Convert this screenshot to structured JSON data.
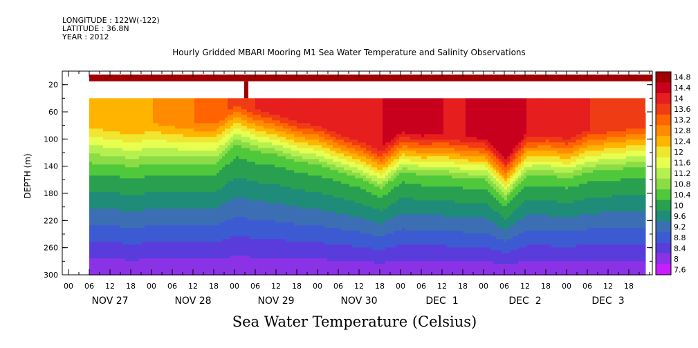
{
  "header": {
    "longitude": "LONGITUDE : 122W(-122)",
    "latitude": "LATITUDE : 36.8N",
    "year": "YEAR : 2012"
  },
  "chart_data": {
    "type": "heatmap",
    "title": "Hourly Gridded MBARI Mooring M1 Sea Water Temperature and Salinity Observations",
    "xlabel": "Sea Water Temperature (Celsius)",
    "ylabel": "DEPTH (m)",
    "ylim": [
      300,
      0
    ],
    "y_ticks": [
      "20",
      "60",
      "100",
      "140",
      "180",
      "220",
      "260",
      "300"
    ],
    "x_hour_ticks": [
      "00",
      "06",
      "12",
      "18",
      "00",
      "06",
      "12",
      "18",
      "00",
      "06",
      "12",
      "18",
      "00",
      "06",
      "12",
      "18",
      "00",
      "06",
      "12",
      "18",
      "00",
      "06",
      "12",
      "18",
      "00",
      "06",
      "12",
      "18"
    ],
    "x_day_labels": [
      "NOV 27",
      "NOV 28",
      "NOV 29",
      "NOV 30",
      "DEC  1",
      "DEC  2",
      "DEC  3"
    ],
    "colorbar_labels": [
      "14.8",
      "14.4",
      "14",
      "13.6",
      "13.2",
      "12.8",
      "12.4",
      "12",
      "11.6",
      "11.2",
      "10.8",
      "10.4",
      "10",
      "9.6",
      "9.2",
      "8.8",
      "8.4",
      "8",
      "7.6"
    ],
    "colorbar_colors": [
      "#a00000",
      "#c8001e",
      "#e61e1e",
      "#f03c14",
      "#ff6400",
      "#ff8c00",
      "#ffb400",
      "#f0e632",
      "#e6ff50",
      "#b4f050",
      "#8cdc46",
      "#50c83c",
      "#28a050",
      "#1e8c78",
      "#3c6eb4",
      "#3c5ad2",
      "#5a3cdc",
      "#8c32e6",
      "#c81eff"
    ],
    "depths": [
      40,
      60,
      80,
      100,
      120,
      140,
      160,
      180,
      200,
      220,
      240,
      260,
      280,
      300
    ],
    "days_since_nov27": [
      0.0,
      0.25,
      0.5,
      0.75,
      1.0,
      1.25,
      1.5,
      1.75,
      2.0,
      2.25,
      2.5,
      2.75,
      3.0,
      3.25,
      3.5,
      3.75,
      4.0,
      4.25,
      4.5,
      4.75,
      5.0,
      5.25,
      5.5,
      5.75,
      6.0,
      6.25,
      6.75
    ],
    "thermocline_depth_m": [
      100,
      100,
      100,
      105,
      100,
      100,
      100,
      100,
      70,
      80,
      85,
      95,
      100,
      110,
      120,
      135,
      110,
      115,
      115,
      120,
      120,
      150,
      115,
      115,
      120,
      110,
      105
    ],
    "surface_temp_c": [
      12.4,
      12.4,
      12.6,
      12.6,
      12.6,
      12.8,
      13.0,
      13.0,
      13.6,
      13.8,
      14.0,
      14.0,
      14.0,
      14.2,
      14.2,
      14.2,
      14.4,
      14.4,
      14.2,
      14.2,
      14.4,
      14.4,
      14.2,
      14.0,
      14.0,
      13.8,
      13.6
    ],
    "bottom_temp_c": 7.8,
    "top_band_depth_range_m": [
      5,
      15
    ],
    "top_band_temp_c": 14.8
  }
}
